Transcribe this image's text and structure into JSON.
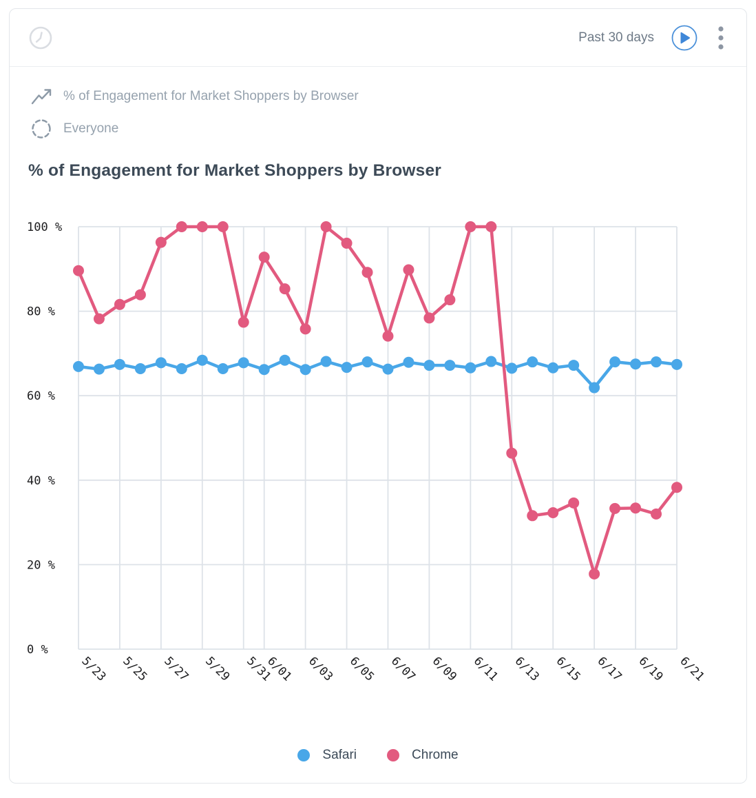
{
  "header": {
    "range_label": "Past 30 days"
  },
  "meta": {
    "metric_label": "% of Engagement for Market Shoppers by Browser",
    "segment_label": "Everyone"
  },
  "title": "% of Engagement for Market Shoppers by Browser",
  "icons": {
    "clock": "clock-icon",
    "trend": "trend-line-icon",
    "everyone": "dashed-circle-icon",
    "play": "play-icon",
    "kebab": "kebab-menu-icon"
  },
  "colors": {
    "safari_blue": "#49a7e8",
    "chrome_pink": "#e25a7f",
    "grid": "#dde2e8",
    "axis_text": "#1c1c1e",
    "title_text": "#3d4a57",
    "muted_text": "#96a2ae"
  },
  "chart_data": {
    "type": "line",
    "title": "% of Engagement for Market Shoppers by Browser",
    "xlabel": "",
    "ylabel": "",
    "ylim": [
      0,
      100
    ],
    "yticks": [
      0,
      20,
      40,
      60,
      80,
      100
    ],
    "ytick_suffix": " %",
    "grid": true,
    "legend_position": "bottom",
    "x": [
      "5/23",
      "5/24",
      "5/25",
      "5/26",
      "5/27",
      "5/28",
      "5/29",
      "5/30",
      "5/31",
      "6/01",
      "6/02",
      "6/03",
      "6/04",
      "6/05",
      "6/06",
      "6/07",
      "6/08",
      "6/09",
      "6/10",
      "6/11",
      "6/12",
      "6/13",
      "6/14",
      "6/15",
      "6/16",
      "6/17",
      "6/18",
      "6/19",
      "6/20",
      "6/21"
    ],
    "xtick_indices": [
      0,
      2,
      4,
      6,
      8,
      9,
      11,
      13,
      15,
      17,
      19,
      21,
      23,
      25,
      27,
      29
    ],
    "series": [
      {
        "name": "Safari",
        "color": "#49a7e8",
        "values": [
          66.9,
          66.3,
          67.4,
          66.4,
          67.8,
          66.4,
          68.4,
          66.4,
          67.8,
          66.2,
          68.4,
          66.2,
          68.1,
          66.7,
          68.0,
          66.3,
          67.9,
          67.2,
          67.2,
          66.6,
          68.1,
          66.5,
          68.0,
          66.6,
          67.2,
          61.9,
          68.0,
          67.5,
          68.0,
          67.4
        ]
      },
      {
        "name": "Chrome",
        "color": "#e25a7f",
        "values": [
          89.6,
          78.2,
          81.6,
          83.9,
          96.3,
          100,
          100,
          100,
          77.4,
          92.8,
          85.3,
          75.8,
          100,
          96.1,
          89.2,
          74.1,
          89.8,
          78.4,
          82.7,
          100,
          100,
          46.4,
          31.6,
          32.3,
          34.6,
          17.8,
          33.3,
          33.4,
          32.0,
          38.3
        ]
      }
    ]
  }
}
